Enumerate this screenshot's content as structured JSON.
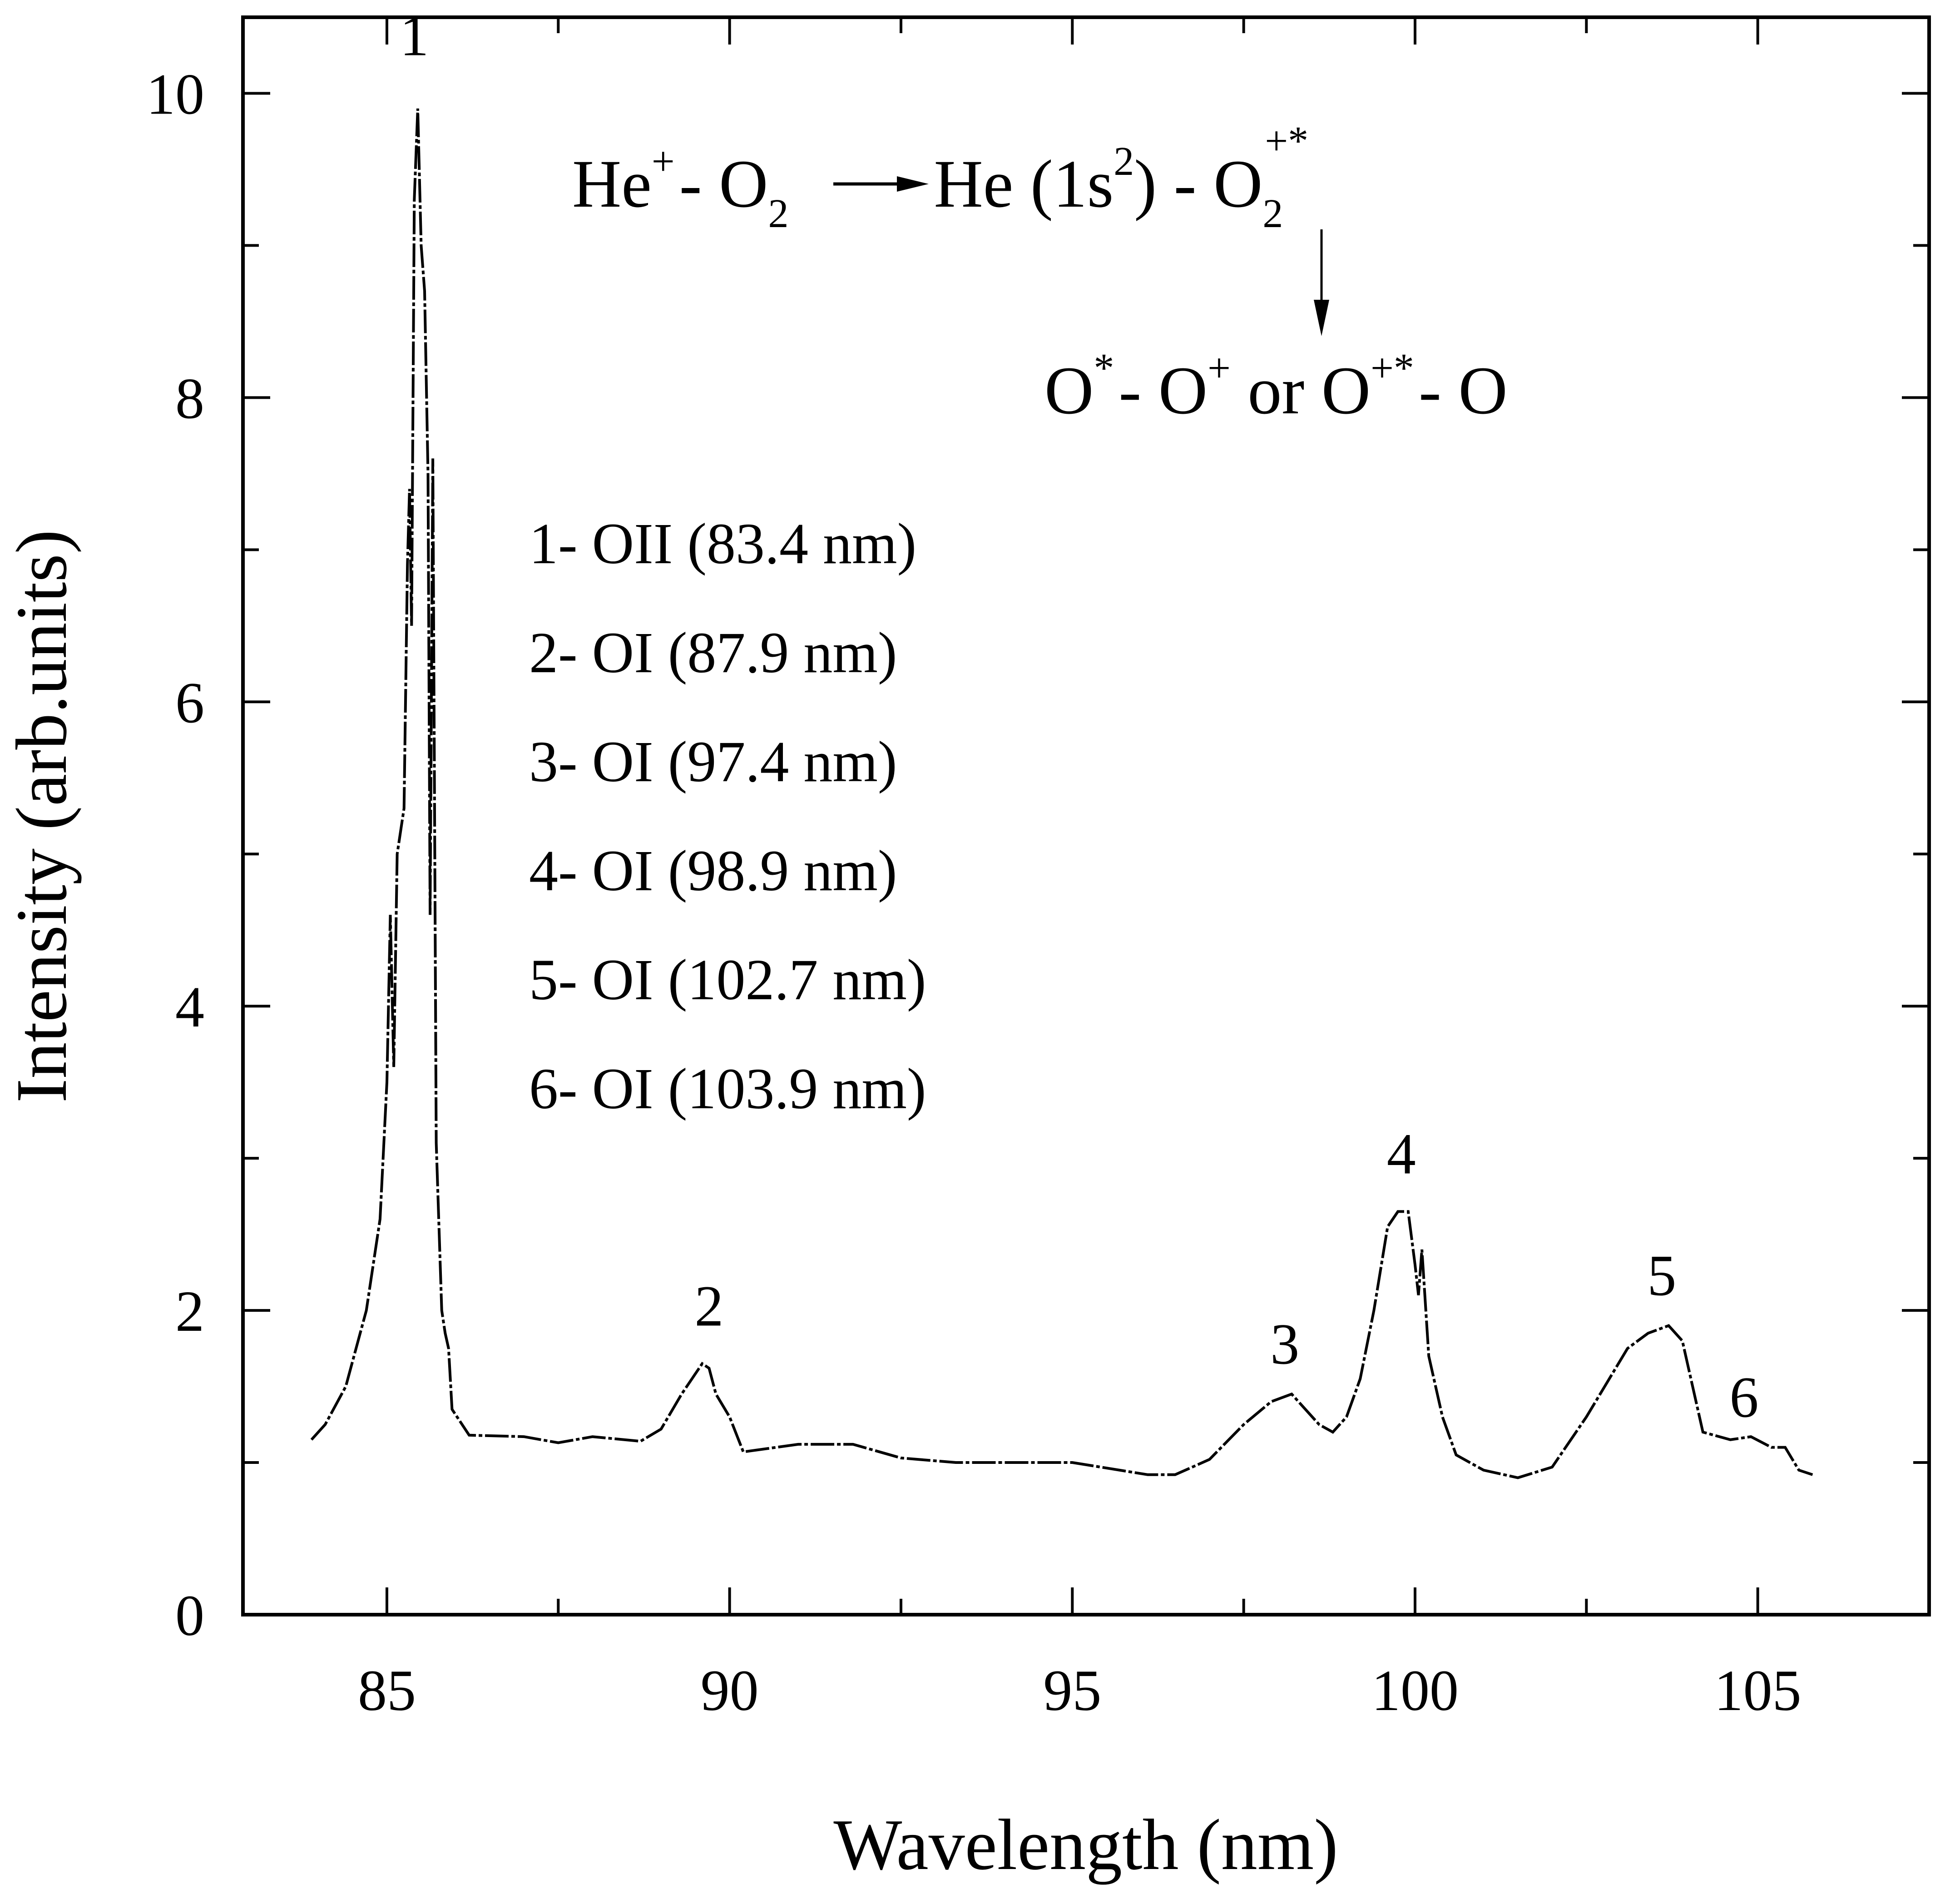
{
  "chart_data": {
    "type": "line",
    "xlabel": "Wavelength (nm)",
    "ylabel": "Intensity (arb.units)",
    "xlim": [
      82.9,
      107.5
    ],
    "ylim": [
      0,
      10.5
    ],
    "x_major_ticks": [
      85,
      90,
      95,
      100,
      105
    ],
    "x_tick_labels": [
      "85",
      "90",
      "95",
      "100",
      "105"
    ],
    "y_major_ticks": [
      0,
      2,
      4,
      6,
      8,
      10
    ],
    "y_tick_labels": [
      "0",
      "2",
      "4",
      "6",
      "8",
      "10"
    ],
    "line_style": "dashed",
    "series": [
      {
        "name": "spectrum",
        "points": [
          [
            83.9,
            1.15
          ],
          [
            84.1,
            1.25
          ],
          [
            84.4,
            1.5
          ],
          [
            84.7,
            2.0
          ],
          [
            84.9,
            2.6
          ],
          [
            85.0,
            3.5
          ],
          [
            85.05,
            4.6
          ],
          [
            85.1,
            3.6
          ],
          [
            85.15,
            5.0
          ],
          [
            85.25,
            5.3
          ],
          [
            85.3,
            6.9
          ],
          [
            85.33,
            7.4
          ],
          [
            85.36,
            6.5
          ],
          [
            85.4,
            9.3
          ],
          [
            85.45,
            9.9
          ],
          [
            85.5,
            9.0
          ],
          [
            85.55,
            8.7
          ],
          [
            85.6,
            7.5
          ],
          [
            85.63,
            4.6
          ],
          [
            85.67,
            7.6
          ],
          [
            85.72,
            3.1
          ],
          [
            85.8,
            2.0
          ],
          [
            85.85,
            1.85
          ],
          [
            85.9,
            1.75
          ],
          [
            85.95,
            1.35
          ],
          [
            86.2,
            1.18
          ],
          [
            87.0,
            1.17
          ],
          [
            87.5,
            1.13
          ],
          [
            88.0,
            1.17
          ],
          [
            88.7,
            1.14
          ],
          [
            89.0,
            1.22
          ],
          [
            89.3,
            1.45
          ],
          [
            89.6,
            1.65
          ],
          [
            89.7,
            1.62
          ],
          [
            89.8,
            1.45
          ],
          [
            90.0,
            1.3
          ],
          [
            90.2,
            1.07
          ],
          [
            91.0,
            1.12
          ],
          [
            91.8,
            1.12
          ],
          [
            92.5,
            1.03
          ],
          [
            93.3,
            1.0
          ],
          [
            95.0,
            1.0
          ],
          [
            96.1,
            0.92
          ],
          [
            96.5,
            0.92
          ],
          [
            97.0,
            1.02
          ],
          [
            97.5,
            1.25
          ],
          [
            97.9,
            1.4
          ],
          [
            98.2,
            1.45
          ],
          [
            98.6,
            1.25
          ],
          [
            98.8,
            1.2
          ],
          [
            99.0,
            1.3
          ],
          [
            99.2,
            1.55
          ],
          [
            99.4,
            2.0
          ],
          [
            99.6,
            2.55
          ],
          [
            99.75,
            2.65
          ],
          [
            99.9,
            2.65
          ],
          [
            100.0,
            2.3
          ],
          [
            100.05,
            2.1
          ],
          [
            100.1,
            2.4
          ],
          [
            100.2,
            1.7
          ],
          [
            100.4,
            1.3
          ],
          [
            100.6,
            1.05
          ],
          [
            101.0,
            0.95
          ],
          [
            101.5,
            0.9
          ],
          [
            102.0,
            0.97
          ],
          [
            102.5,
            1.3
          ],
          [
            102.9,
            1.6
          ],
          [
            103.1,
            1.75
          ],
          [
            103.4,
            1.85
          ],
          [
            103.7,
            1.9
          ],
          [
            103.9,
            1.8
          ],
          [
            104.0,
            1.6
          ],
          [
            104.2,
            1.2
          ],
          [
            104.6,
            1.15
          ],
          [
            104.9,
            1.17
          ],
          [
            105.2,
            1.1
          ],
          [
            105.4,
            1.1
          ],
          [
            105.6,
            0.95
          ],
          [
            105.8,
            0.92
          ]
        ]
      }
    ],
    "peak_labels": [
      {
        "text": "1",
        "x": 85.4,
        "y": 10.25
      },
      {
        "text": "2",
        "x": 89.7,
        "y": 1.9
      },
      {
        "text": "3",
        "x": 98.1,
        "y": 1.65
      },
      {
        "text": "4",
        "x": 99.8,
        "y": 2.9
      },
      {
        "text": "5",
        "x": 103.6,
        "y": 2.1
      },
      {
        "text": "6",
        "x": 104.8,
        "y": 1.3
      }
    ],
    "legend_entries": [
      "1- OII (83.4 nm)",
      "2- OI (87.9 nm)",
      "3- OI (97.4 nm)",
      "4- OI (98.9 nm)",
      "5- OI (102.7 nm)",
      "6- OI (103.9 nm)"
    ],
    "annotation": {
      "line1": {
        "a_base": "He",
        "a_sup": "+",
        "dash1": "- O",
        "a_sub": "2",
        "product": "He (1s",
        "prod_sup": "2",
        "prod_close": ") - O",
        "prod_sub": "2",
        "prod_sup2": "+*"
      },
      "line2": {
        "o1": "O",
        "o1_sup": "*",
        "dash": "- O",
        "o2_sup": "+",
        "or": " or O",
        "o3_sup": "+*",
        "tail": "- O"
      }
    }
  }
}
